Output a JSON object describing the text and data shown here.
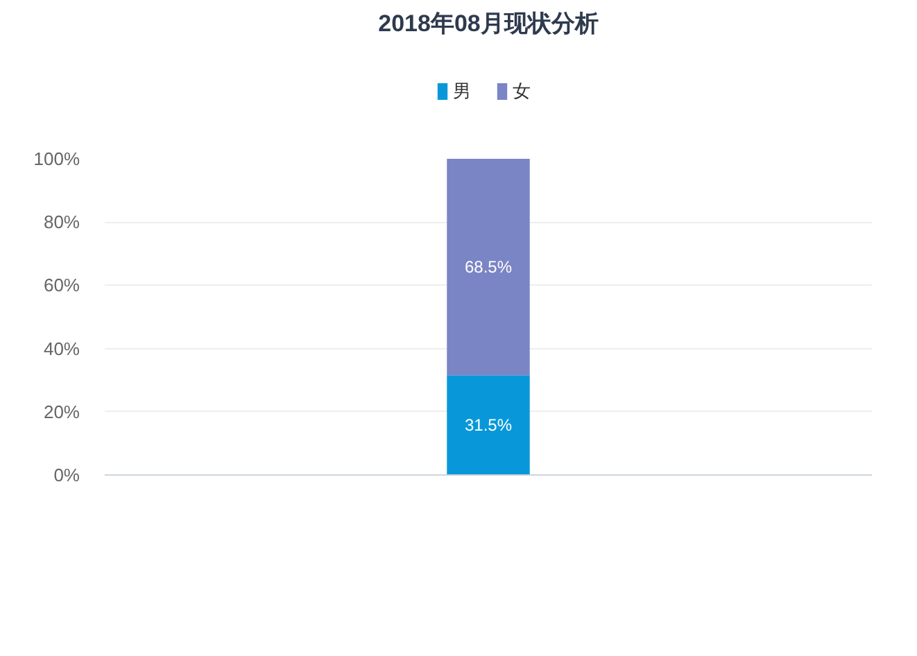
{
  "chart_data": {
    "type": "bar",
    "title": "2018年08月现状分析",
    "categories": [
      null
    ],
    "stacked": true,
    "series": [
      {
        "name": "男",
        "color": "#0898d9",
        "values": [
          31.5
        ],
        "value_labels": [
          "31.5%"
        ]
      },
      {
        "name": "女",
        "color": "#7a85c5",
        "values": [
          68.5
        ],
        "value_labels": [
          "68.5%"
        ]
      }
    ],
    "ylim": [
      0,
      100
    ],
    "yticks": [
      {
        "value": 0,
        "label": "0%"
      },
      {
        "value": 20,
        "label": "20%"
      },
      {
        "value": 40,
        "label": "40%"
      },
      {
        "value": 60,
        "label": "60%"
      },
      {
        "value": 80,
        "label": "80%"
      },
      {
        "value": 100,
        "label": "100%"
      }
    ],
    "grid": "y",
    "legend": "top"
  }
}
